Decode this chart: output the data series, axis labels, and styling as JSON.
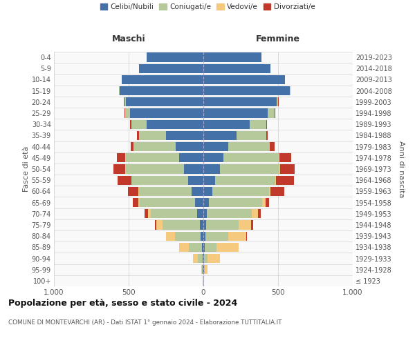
{
  "age_groups": [
    "100+",
    "95-99",
    "90-94",
    "85-89",
    "80-84",
    "75-79",
    "70-74",
    "65-69",
    "60-64",
    "55-59",
    "50-54",
    "45-49",
    "40-44",
    "35-39",
    "30-34",
    "25-29",
    "20-24",
    "15-19",
    "10-14",
    "5-9",
    "0-4"
  ],
  "birth_years": [
    "≤ 1923",
    "1924-1928",
    "1929-1933",
    "1934-1938",
    "1939-1943",
    "1944-1948",
    "1949-1953",
    "1954-1958",
    "1959-1963",
    "1964-1968",
    "1969-1973",
    "1974-1978",
    "1979-1983",
    "1984-1988",
    "1989-1993",
    "1994-1998",
    "1999-2003",
    "2004-2008",
    "2009-2013",
    "2014-2018",
    "2019-2023"
  ],
  "colors": {
    "celibi": "#4472a8",
    "coniugati": "#b5c99a",
    "vedovi": "#f5c97e",
    "divorziati": "#c0392b"
  },
  "males": {
    "celibi": [
      2,
      3,
      5,
      8,
      20,
      25,
      40,
      55,
      80,
      100,
      130,
      160,
      185,
      250,
      380,
      490,
      520,
      560,
      545,
      430,
      380
    ],
    "coniugati": [
      2,
      5,
      30,
      90,
      170,
      250,
      310,
      370,
      350,
      380,
      390,
      360,
      280,
      180,
      100,
      35,
      10,
      5,
      2,
      1,
      0
    ],
    "vedovi": [
      1,
      8,
      35,
      65,
      60,
      40,
      20,
      10,
      5,
      3,
      2,
      1,
      1,
      0,
      0,
      0,
      0,
      0,
      0,
      0,
      0
    ],
    "divorziati": [
      0,
      0,
      0,
      0,
      0,
      10,
      25,
      35,
      70,
      90,
      80,
      60,
      20,
      15,
      10,
      5,
      2,
      0,
      0,
      0,
      0
    ]
  },
  "females": {
    "celibi": [
      2,
      3,
      5,
      8,
      15,
      18,
      25,
      35,
      60,
      80,
      110,
      135,
      165,
      220,
      310,
      430,
      490,
      580,
      545,
      450,
      390
    ],
    "coniugati": [
      1,
      5,
      25,
      80,
      150,
      220,
      300,
      360,
      380,
      400,
      400,
      370,
      280,
      200,
      110,
      45,
      12,
      5,
      2,
      1,
      0
    ],
    "vedovi": [
      3,
      20,
      80,
      150,
      120,
      80,
      40,
      20,
      10,
      5,
      3,
      2,
      1,
      0,
      0,
      0,
      0,
      0,
      0,
      0,
      0
    ],
    "divorziati": [
      0,
      0,
      0,
      0,
      5,
      15,
      20,
      25,
      90,
      120,
      100,
      80,
      30,
      10,
      5,
      5,
      2,
      0,
      0,
      0,
      0
    ]
  },
  "title": "Popolazione per età, sesso e stato civile - 2024",
  "subtitle": "COMUNE DI MONTEVARCHI (AR) - Dati ISTAT 1° gennaio 2024 - Elaborazione TUTTITALIA.IT",
  "xlabel_left": "Maschi",
  "xlabel_right": "Femmine",
  "ylabel_left": "Fasce di età",
  "ylabel_right": "Anni di nascita",
  "xlim": 1000,
  "legend_labels": [
    "Celibi/Nubili",
    "Coniugati/e",
    "Vedovi/e",
    "Divorziati/e"
  ],
  "bg_color": "#ffffff",
  "grid_color": "#cccccc",
  "ax_bg_color": "#f9f9f9"
}
